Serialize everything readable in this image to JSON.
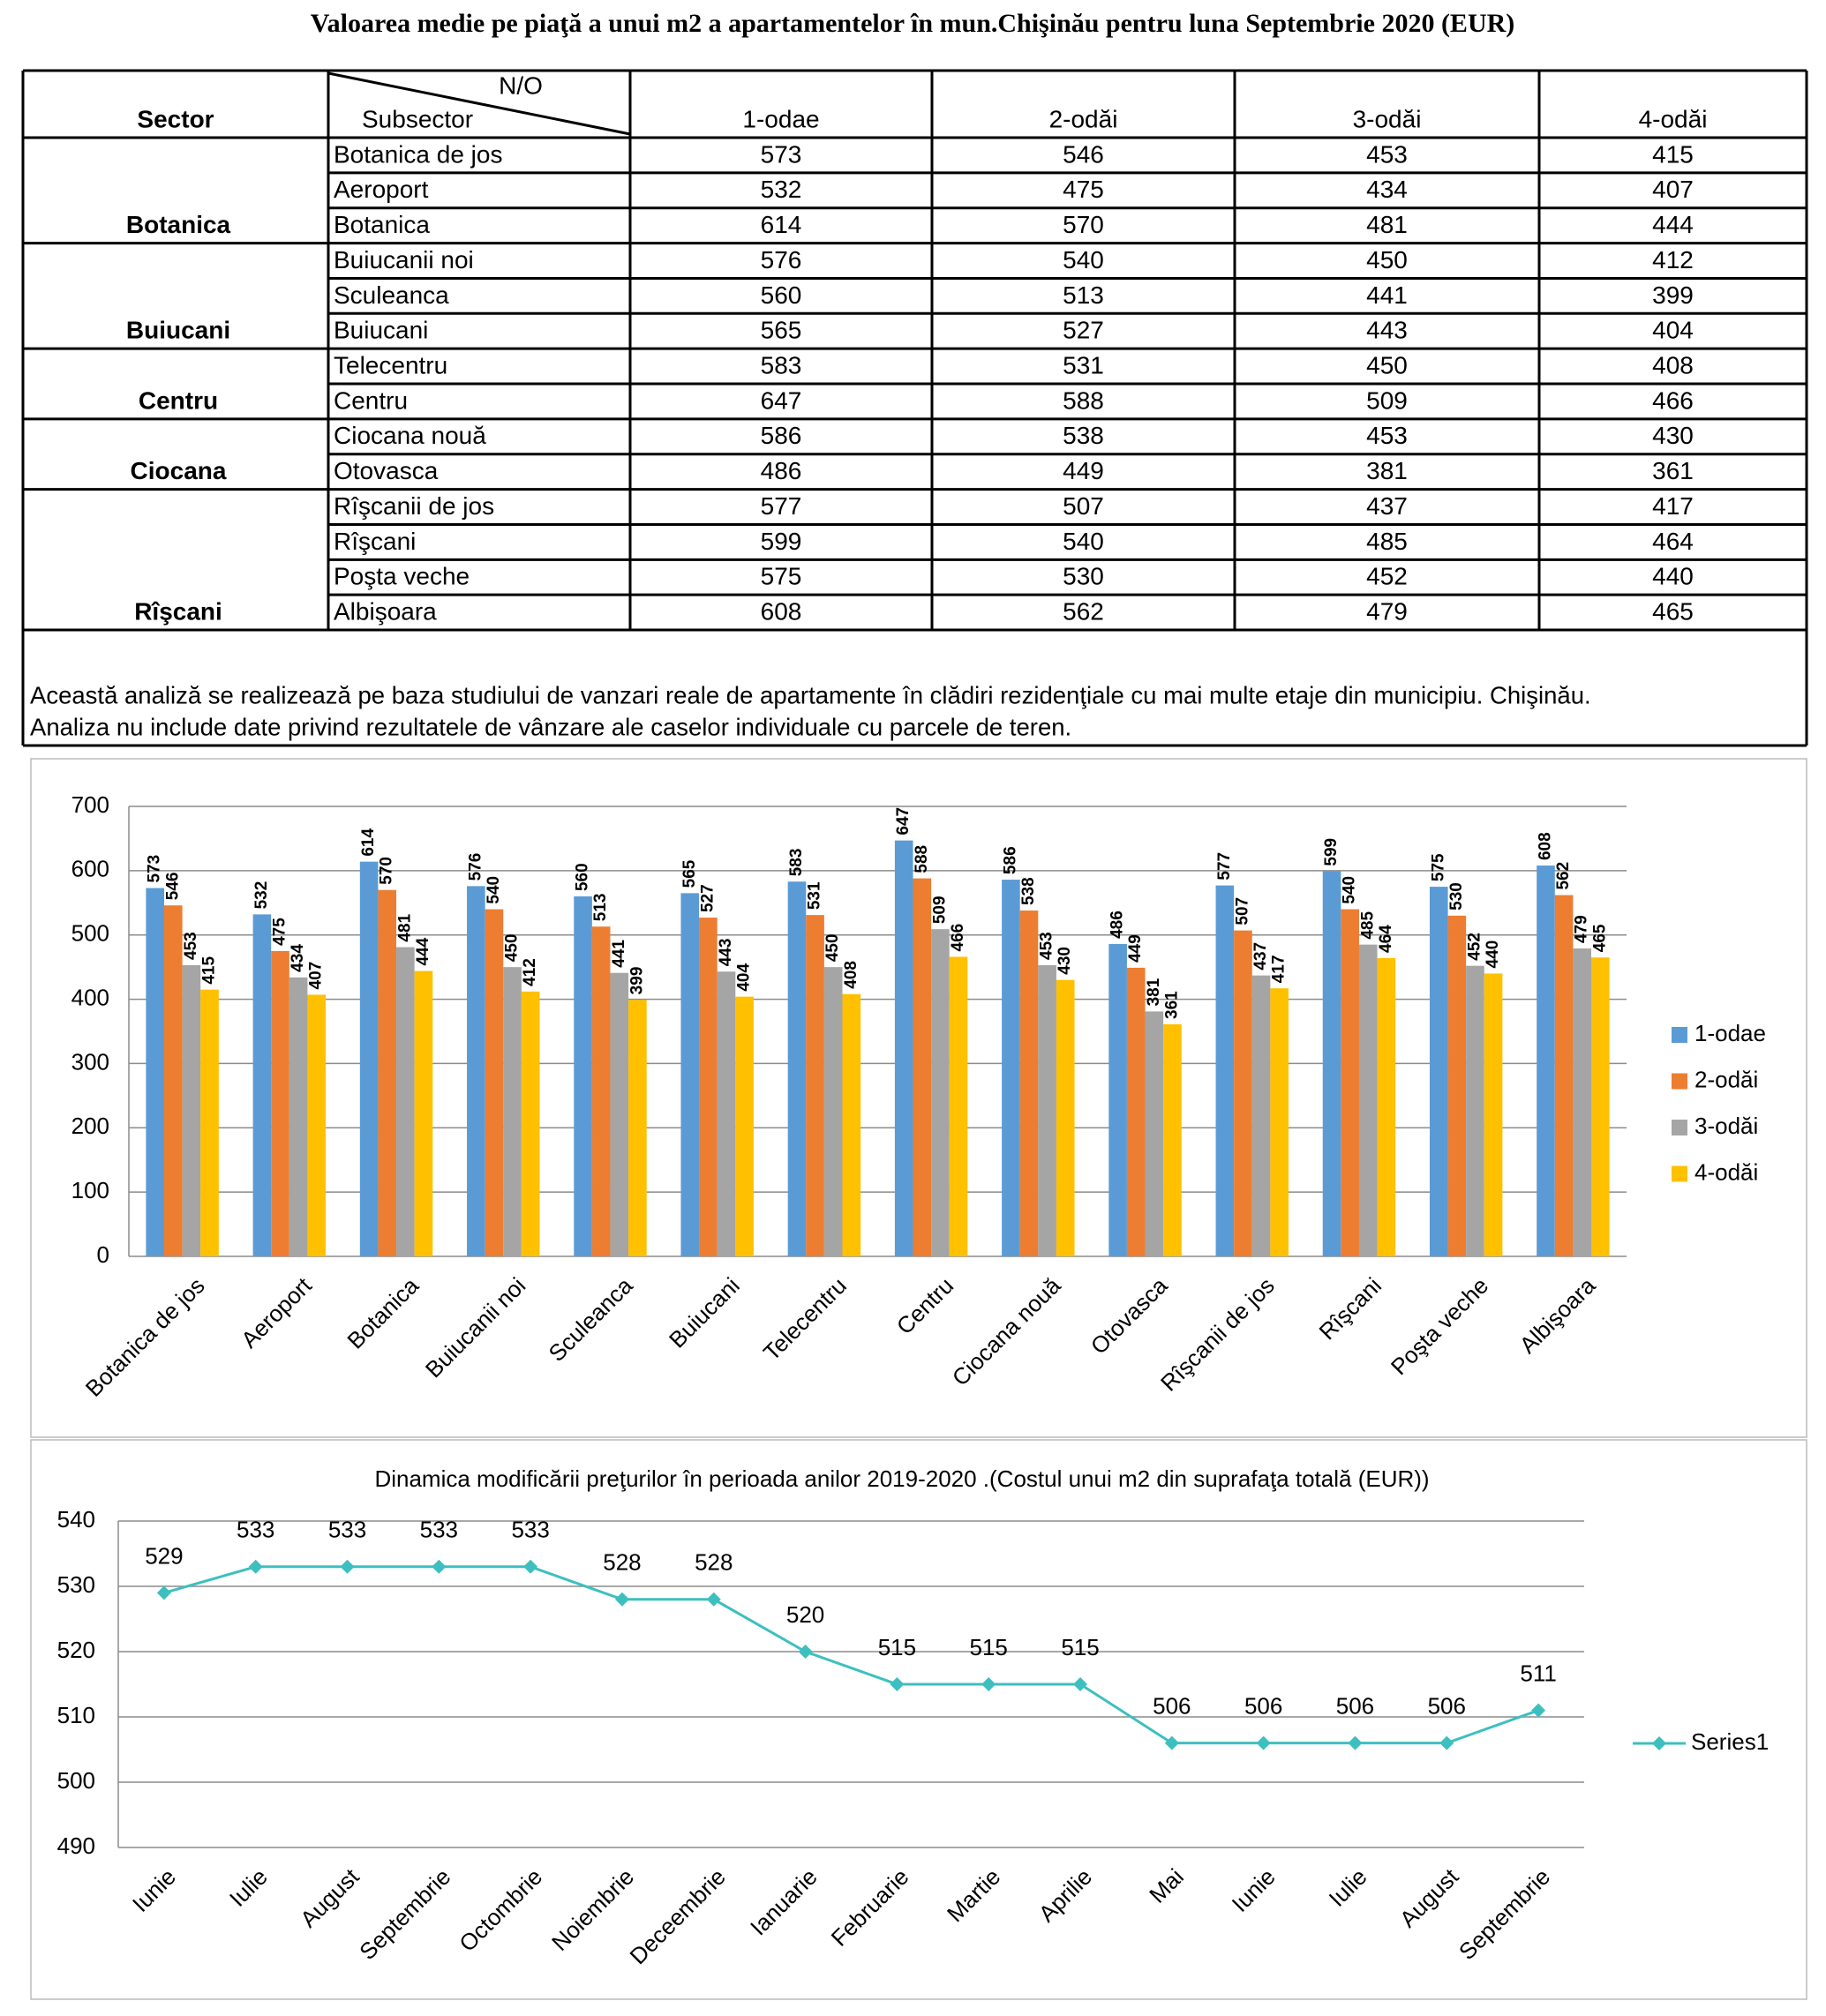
{
  "title": "Valoarea medie pe piaţă a unui m2 a apartamentelor în mun.Chişinău pentru luna Septembrie 2020 (EUR)",
  "table": {
    "header": {
      "sector": "Sector",
      "no": "N/O",
      "subsector": "Subsector",
      "columns": [
        "1-odae",
        "2-odăi",
        "3-odăi",
        "4-odăi"
      ]
    },
    "groups": [
      {
        "sector": "Botanica",
        "rows": [
          [
            "Botanica de jos",
            573,
            546,
            453,
            415
          ],
          [
            "Aeroport",
            532,
            475,
            434,
            407
          ],
          [
            "Botanica",
            614,
            570,
            481,
            444
          ]
        ]
      },
      {
        "sector": "Buiucani",
        "rows": [
          [
            "Buiucanii noi",
            576,
            540,
            450,
            412
          ],
          [
            "Sculeanca",
            560,
            513,
            441,
            399
          ],
          [
            "Buiucani",
            565,
            527,
            443,
            404
          ]
        ]
      },
      {
        "sector": "Centru",
        "rows": [
          [
            "Telecentru",
            583,
            531,
            450,
            408
          ],
          [
            "Centru",
            647,
            588,
            509,
            466
          ]
        ]
      },
      {
        "sector": "Ciocana",
        "rows": [
          [
            "Ciocana nouă",
            586,
            538,
            453,
            430
          ],
          [
            "Otovasca",
            486,
            449,
            381,
            361
          ]
        ]
      },
      {
        "sector": "Rîşcani",
        "rows": [
          [
            "Rîşcanii de jos",
            577,
            507,
            437,
            417
          ],
          [
            "Rîşcani",
            599,
            540,
            485,
            464
          ],
          [
            "Poşta veche",
            575,
            530,
            452,
            440
          ],
          [
            "Albişoara",
            608,
            562,
            479,
            465
          ]
        ]
      }
    ]
  },
  "note": [
    "Această analiză se realizează pe baza studiului de vanzari reale de apartamente în clădiri rezidenţiale cu mai multe etaje din municipiu. Chişinău.",
    "Analiza nu include date privind rezultatele de vânzare ale caselor individuale cu parcele de teren."
  ],
  "chart_data": [
    {
      "type": "bar",
      "categories": [
        "Botanica de jos",
        "Aeroport",
        "Botanica",
        "Buiucanii noi",
        "Sculeanca",
        "Buiucani",
        "Telecentru",
        "Centru",
        "Ciocana nouă",
        "Otovasca",
        "Rîşcanii de jos",
        "Rîşcani",
        "Poşta veche",
        "Albişoara"
      ],
      "series": [
        {
          "name": "1-odae",
          "color": "#5b9bd5",
          "values": [
            573,
            532,
            614,
            576,
            560,
            565,
            583,
            647,
            586,
            486,
            577,
            599,
            575,
            608
          ]
        },
        {
          "name": "2-odăi",
          "color": "#ed7d31",
          "values": [
            546,
            475,
            570,
            540,
            513,
            527,
            531,
            588,
            538,
            449,
            507,
            540,
            530,
            562
          ]
        },
        {
          "name": "3-odăi",
          "color": "#a5a5a5",
          "values": [
            453,
            434,
            481,
            450,
            441,
            443,
            450,
            509,
            453,
            381,
            437,
            485,
            452,
            479
          ]
        },
        {
          "name": "4-odăi",
          "color": "#ffc000",
          "values": [
            415,
            407,
            444,
            412,
            399,
            404,
            408,
            466,
            430,
            361,
            417,
            464,
            440,
            465
          ]
        }
      ],
      "ylim": [
        0,
        700
      ],
      "yticks": [
        0,
        100,
        200,
        300,
        400,
        500,
        600,
        700
      ],
      "grid": true,
      "legend": "right"
    },
    {
      "type": "line",
      "title": "Dinamica modificării preţurilor în perioada anilor 2019-2020 .(Costul unui m2 din suprafaţa totală (EUR))",
      "categories": [
        "Iunie",
        "Iulie",
        "August",
        "Septembrie",
        "Octombrie",
        "Noiembrie",
        "Deceembrie",
        "Ianuarie",
        "Februarie",
        "Martie",
        "Aprilie",
        "Mai",
        "Iunie",
        "Iulie",
        "August",
        "Septembrie"
      ],
      "series": [
        {
          "name": "Series1",
          "color": "#3dbfc0",
          "values": [
            529,
            533,
            533,
            533,
            533,
            528,
            528,
            520,
            515,
            515,
            515,
            506,
            506,
            506,
            506,
            511
          ]
        }
      ],
      "ylim": [
        490,
        540
      ],
      "yticks": [
        490,
        500,
        510,
        520,
        530,
        540
      ],
      "grid": true,
      "legend": "right"
    }
  ]
}
